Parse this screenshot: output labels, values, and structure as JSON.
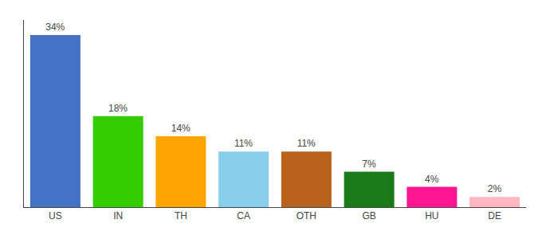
{
  "chart_data": {
    "type": "bar",
    "categories": [
      "US",
      "IN",
      "TH",
      "CA",
      "OTH",
      "GB",
      "HU",
      "DE"
    ],
    "values": [
      34,
      18,
      14,
      11,
      11,
      7,
      4,
      2
    ],
    "value_labels": [
      "34%",
      "18%",
      "14%",
      "11%",
      "11%",
      "7%",
      "4%",
      "2%"
    ],
    "colors": [
      "#4472C4",
      "#33CC00",
      "#FFA500",
      "#87CEEB",
      "#B8621B",
      "#1A7A1A",
      "#FF1493",
      "#FFB6C1"
    ],
    "ylim": [
      0,
      37
    ],
    "grid": false,
    "data_labels": true,
    "tick_labels": "x"
  }
}
